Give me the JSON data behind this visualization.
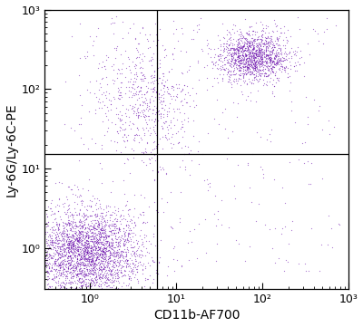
{
  "xlim": [
    0.3,
    1000
  ],
  "ylim": [
    0.3,
    1000
  ],
  "xlabel": "CD11b-AF700",
  "ylabel": "Ly-6G/Ly-6C-PE",
  "dot_color": "#6A0DAD",
  "dot_alpha": 0.55,
  "dot_size": 0.8,
  "quadrant_x": 6.0,
  "quadrant_y": 15.0,
  "seed": 42,
  "cluster1": {
    "n": 3000,
    "x_center_log": -0.05,
    "y_center_log": -0.05,
    "x_spread": 0.32,
    "y_spread": 0.28
  },
  "cluster2": {
    "n": 1400,
    "x_center_log": 1.9,
    "y_center_log": 2.4,
    "x_spread": 0.2,
    "y_spread": 0.15
  },
  "cluster3_trail": {
    "n": 600,
    "x_center_log": 0.65,
    "y_center_log": 1.85,
    "x_spread": 0.3,
    "y_spread": 0.42
  },
  "scatter_n": 300,
  "scatter_xlim_log": [
    -0.3,
    2.9
  ],
  "scatter_ylim_log": [
    -0.3,
    2.9
  ],
  "figsize": [
    4.0,
    3.61
  ],
  "dpi": 100
}
